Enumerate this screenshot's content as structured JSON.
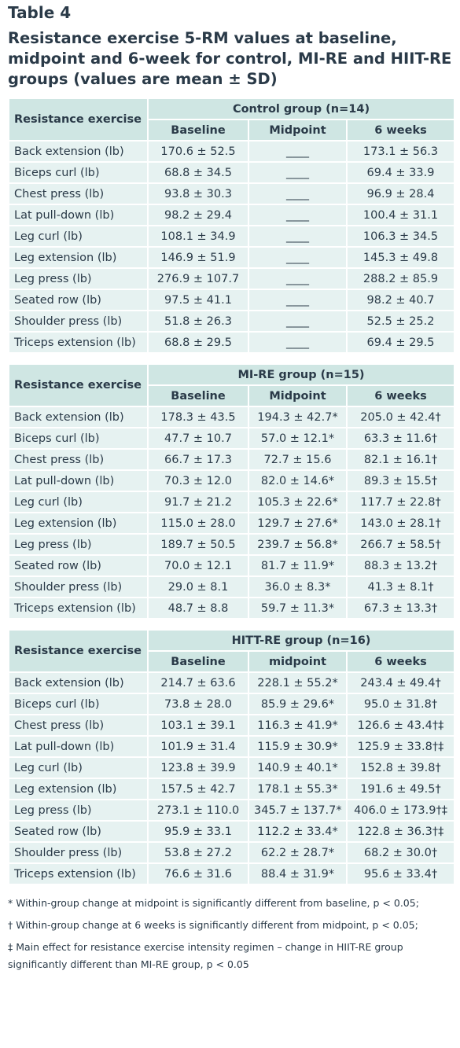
{
  "title": "Table 4",
  "subtitle": "Resistance exercise 5-RM values at baseline, midpoint and 6-week for control, MI-RE and HIIT-RE groups (values are mean ± SD)",
  "tables": [
    {
      "group": "Control group (n=14)",
      "header": [
        "Resistance exercise",
        "Baseline",
        "Midpoint",
        "6 weeks"
      ],
      "rows": [
        [
          "Back extension (lb)",
          "170.6 ± 52.5",
          "____",
          "173.1 ± 56.3"
        ],
        [
          "Biceps curl (lb)",
          "68.8 ± 34.5",
          "____",
          "69.4 ± 33.9"
        ],
        [
          "Chest press (lb)",
          "93.8 ± 30.3",
          "____",
          "96.9 ± 28.4"
        ],
        [
          "Lat pull-down (lb)",
          "98.2 ± 29.4",
          "____",
          "100.4 ± 31.1"
        ],
        [
          "Leg curl (lb)",
          "108.1 ± 34.9",
          "____",
          "106.3 ± 34.5"
        ],
        [
          "Leg extension (lb)",
          "146.9 ± 51.9",
          "____",
          "145.3 ± 49.8"
        ],
        [
          "Leg press (lb)",
          "276.9 ± 107.7",
          "____",
          "288.2 ± 85.9"
        ],
        [
          "Seated row (lb)",
          "97.5 ± 41.1",
          "____",
          "98.2 ± 40.7"
        ],
        [
          "Shoulder press (lb)",
          "51.8 ± 26.3",
          "____",
          "52.5 ± 25.2"
        ],
        [
          "Triceps extension (lb)",
          "68.8 ± 29.5",
          "____",
          "69.4 ± 29.5"
        ]
      ]
    },
    {
      "group": "MI-RE group (n=15)",
      "header": [
        "Resistance exercise",
        "Baseline",
        "Midpoint",
        "6 weeks"
      ],
      "rows": [
        [
          "Back extension (lb)",
          "178.3 ± 43.5",
          "194.3 ± 42.7*",
          "205.0 ± 42.4†"
        ],
        [
          "Biceps curl (lb)",
          "47.7 ± 10.7",
          "57.0 ± 12.1*",
          "63.3 ± 11.6†"
        ],
        [
          "Chest press (lb)",
          "66.7 ± 17.3",
          "72.7 ± 15.6",
          "82.1 ± 16.1†"
        ],
        [
          "Lat pull-down (lb)",
          "70.3 ± 12.0",
          "82.0 ± 14.6*",
          "89.3 ± 15.5†"
        ],
        [
          "Leg curl (lb)",
          "91.7 ± 21.2",
          "105.3 ± 22.6*",
          "117.7 ± 22.8†"
        ],
        [
          "Leg extension (lb)",
          "115.0 ± 28.0",
          "129.7 ± 27.6*",
          "143.0 ± 28.1†"
        ],
        [
          "Leg press (lb)",
          "189.7 ± 50.5",
          "239.7 ± 56.8*",
          "266.7 ± 58.5†"
        ],
        [
          "Seated row (lb)",
          "70.0 ± 12.1",
          "81.7 ± 11.9*",
          "88.3 ± 13.2†"
        ],
        [
          "Shoulder press (lb)",
          "29.0 ± 8.1",
          "36.0 ± 8.3*",
          "41.3 ± 8.1†"
        ],
        [
          "Triceps extension (lb)",
          "48.7 ± 8.8",
          "59.7 ± 11.3*",
          "67.3 ± 13.3†"
        ]
      ]
    },
    {
      "group": "HITT-RE group (n=16)",
      "header": [
        "Resistance exercise",
        "Baseline",
        "midpoint",
        "6 weeks"
      ],
      "rows": [
        [
          "Back extension (lb)",
          "214.7 ± 63.6",
          "228.1 ± 55.2*",
          "243.4 ± 49.4†"
        ],
        [
          "Biceps curl (lb)",
          "73.8 ± 28.0",
          "85.9 ± 29.6*",
          "95.0 ± 31.8†"
        ],
        [
          "Chest press (lb)",
          "103.1 ± 39.1",
          "116.3 ± 41.9*",
          "126.6 ± 43.4†‡"
        ],
        [
          "Lat pull-down (lb)",
          "101.9 ± 31.4",
          "115.9 ± 30.9*",
          "125.9 ± 33.8†‡"
        ],
        [
          "Leg curl (lb)",
          "123.8 ± 39.9",
          "140.9 ± 40.1*",
          "152.8 ± 39.8†"
        ],
        [
          "Leg extension (lb)",
          "157.5 ± 42.7",
          "178.1 ± 55.3*",
          "191.6 ± 49.5†"
        ],
        [
          "Leg press (lb)",
          "273.1 ± 110.0",
          "345.7 ± 137.7*",
          "406.0 ± 173.9†‡"
        ],
        [
          "Seated row (lb)",
          "95.9 ± 33.1",
          "112.2 ± 33.4*",
          "122.8 ± 36.3†‡"
        ],
        [
          "Shoulder press (lb)",
          "53.8 ± 27.2",
          "62.2 ± 28.7*",
          "68.2 ± 30.0†"
        ],
        [
          "Triceps extension (lb)",
          "76.6 ± 31.6",
          "88.4 ± 31.9*",
          "95.6 ± 33.4†"
        ]
      ]
    }
  ],
  "footnotes": [
    "* Within-group change at midpoint is significantly different from baseline, p < 0.05;",
    "† Within-group change at 6 weeks is significantly different from midpoint, p < 0.05;",
    "‡ Main effect for resistance exercise intensity regimen – change in HIIT-RE group significantly different than MI-RE group, p < 0.05"
  ]
}
